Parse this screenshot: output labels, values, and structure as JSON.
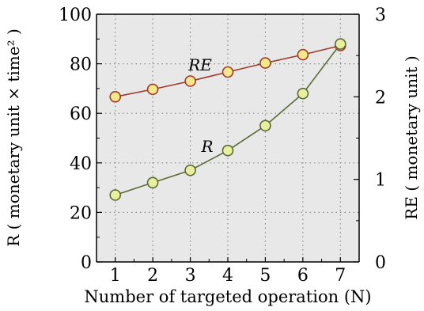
{
  "chart_data": {
    "type": "line",
    "x": [
      1,
      2,
      3,
      4,
      5,
      6,
      7
    ],
    "xlabel": "Number of targeted operation (N)",
    "xlim": [
      0.5,
      7.5
    ],
    "ylabel_left": "R ( monetary unit × time² )",
    "ylabel_right": "RE ( monetary unit )",
    "ylim_left": [
      0,
      100
    ],
    "ylim_right": [
      0,
      3
    ],
    "yticks_left": [
      0,
      20,
      40,
      60,
      80,
      100
    ],
    "yticks_right": [
      0,
      1,
      2,
      3
    ],
    "grid": true,
    "legend": "none",
    "series": [
      {
        "name": "RE",
        "axis": "right",
        "values": [
          2.0,
          2.09,
          2.19,
          2.3,
          2.41,
          2.51,
          2.62
        ],
        "line_color": "#a03a2a",
        "marker_color": "#f5e88a"
      },
      {
        "name": "R",
        "axis": "left",
        "values": [
          27,
          32,
          37,
          45,
          55,
          68,
          88
        ],
        "line_color": "#5a6b35",
        "marker_color": "#e8f0a0"
      }
    ]
  },
  "colors": {
    "plot_background": "#e8e8e8",
    "grid": "#8a8a8a"
  }
}
